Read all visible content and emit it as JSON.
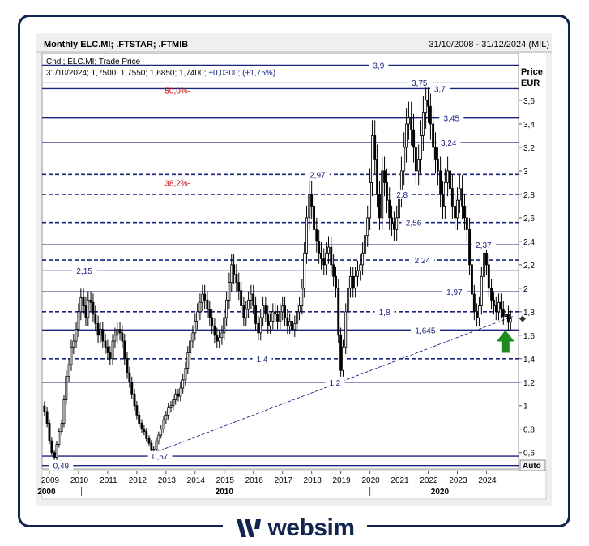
{
  "header": {
    "title": "Monthly ELC.MI; .FTSTAR; .FTMIB",
    "range": "31/10/2008 - 31/12/2024 (MIL)",
    "legend_line1": "Cndl; ELC.MI; Trade Price",
    "legend_line2_prefix": "31/10/2024; 1,7500; 1,7550; 1,6850; 1,7400; ",
    "legend_line2_change": "+0,0300; (+1,75%)",
    "price_label": "Price",
    "currency_label": "EUR",
    "auto_label": "Auto"
  },
  "logo": {
    "text": "websim",
    "icon": "websim-slash-icon"
  },
  "colors": {
    "navy": "#10254f",
    "level_line": "#1a237e",
    "fib_label": "#cc0000",
    "candle": "#000000",
    "arrow": "#1d8a1d"
  },
  "chart_data": {
    "type": "candlestick",
    "title": "Monthly ELC.MI; .FTSTAR; .FTMIB",
    "ylabel": "Price EUR",
    "ylim": [
      0.46,
      4.0
    ],
    "xlim": [
      2008.75,
      2025.1
    ],
    "yticks": [
      "0,6",
      "0,8",
      "1",
      "1,2",
      "1,4",
      "1,6",
      "1,8",
      "2",
      "2,2",
      "2,4",
      "2,6",
      "2,8",
      "3",
      "3,2",
      "3,4",
      "3,6"
    ],
    "ytick_values": [
      0.6,
      0.8,
      1.0,
      1.2,
      1.4,
      1.6,
      1.8,
      2.0,
      2.2,
      2.4,
      2.6,
      2.8,
      3.0,
      3.2,
      3.4,
      3.6
    ],
    "xticks": [
      "2009",
      "2010",
      "2011",
      "2012",
      "2013",
      "2014",
      "2015",
      "2016",
      "2017",
      "2018",
      "2019",
      "2020",
      "2021",
      "2022",
      "2023",
      "2024"
    ],
    "decades": [
      {
        "label": "2000",
        "year": 2008.9
      },
      {
        "label": "2010",
        "year": 2015.0
      },
      {
        "label": "2020",
        "year": 2022.4
      }
    ],
    "horizontal_levels": [
      {
        "value": 3.9,
        "label": "3,9",
        "style": "solid",
        "label_year": 2020.3
      },
      {
        "value": 3.75,
        "label": "3,75",
        "style": "thin",
        "label_year": 2021.7
      },
      {
        "value": 3.7,
        "label": "3,7",
        "style": "solid",
        "label_year": 2022.4
      },
      {
        "value": 3.45,
        "label": "3,45",
        "style": "solid",
        "label_year": 2022.8
      },
      {
        "value": 3.24,
        "label": "3,24",
        "style": "solid",
        "label_year": 2022.7
      },
      {
        "value": 2.97,
        "label": "2,97",
        "style": "dashed",
        "label_year": 2018.2
      },
      {
        "value": 2.8,
        "label": "2,8",
        "style": "dashed",
        "label_year": 2021.1
      },
      {
        "value": 2.56,
        "label": "2,56",
        "style": "dashed",
        "label_year": 2021.5
      },
      {
        "value": 2.37,
        "label": "2,37",
        "style": "solid",
        "label_year": 2023.9
      },
      {
        "value": 2.24,
        "label": "2,24",
        "style": "dashed",
        "label_year": 2021.8
      },
      {
        "value": 2.15,
        "label": "2,15",
        "style": "thin",
        "label_year": 2010.2
      },
      {
        "value": 1.97,
        "label": "1,97",
        "style": "solid",
        "label_year": 2022.9
      },
      {
        "value": 1.8,
        "label": "1,8",
        "style": "dashed",
        "label_year": 2020.5
      },
      {
        "value": 1.645,
        "label": "1,645",
        "style": "solid",
        "label_year": 2021.9
      },
      {
        "value": 1.4,
        "label": "1,4",
        "style": "dashed",
        "label_year": 2016.3
      },
      {
        "value": 1.2,
        "label": "1,2",
        "style": "solid",
        "label_year": 2018.8
      },
      {
        "value": 0.57,
        "label": "0,57",
        "style": "solid",
        "label_year": 2012.8
      },
      {
        "value": 0.49,
        "label": "0,49",
        "style": "solid",
        "label_year": 2009.4
      }
    ],
    "fib_labels": [
      {
        "value": 3.685,
        "label": "50,0%-",
        "label_year": 2013.4
      },
      {
        "value": 2.9,
        "label": "38,2%-",
        "label_year": 2013.4
      }
    ],
    "trendline": {
      "start": [
        2012.5,
        0.59
      ],
      "end": [
        2024.9,
        1.76
      ],
      "style": "dashed"
    },
    "last_price": {
      "year": 2024.85,
      "value": 1.74
    },
    "arrow": {
      "year": 2024.65,
      "value": 1.45,
      "direction": "up"
    },
    "close_series": [
      [
        2008.83,
        0.95
      ],
      [
        2008.92,
        0.85
      ],
      [
        2009.0,
        0.7
      ],
      [
        2009.08,
        0.6
      ],
      [
        2009.17,
        0.56
      ],
      [
        2009.25,
        0.67
      ],
      [
        2009.33,
        0.78
      ],
      [
        2009.42,
        0.85
      ],
      [
        2009.5,
        1.05
      ],
      [
        2009.58,
        1.25
      ],
      [
        2009.67,
        1.35
      ],
      [
        2009.75,
        1.5
      ],
      [
        2009.83,
        1.55
      ],
      [
        2009.92,
        1.65
      ],
      [
        2010.0,
        1.8
      ],
      [
        2010.08,
        1.92
      ],
      [
        2010.17,
        1.85
      ],
      [
        2010.25,
        1.75
      ],
      [
        2010.33,
        1.9
      ],
      [
        2010.42,
        1.88
      ],
      [
        2010.5,
        1.78
      ],
      [
        2010.58,
        1.7
      ],
      [
        2010.67,
        1.6
      ],
      [
        2010.75,
        1.65
      ],
      [
        2010.83,
        1.55
      ],
      [
        2010.92,
        1.5
      ],
      [
        2011.0,
        1.45
      ],
      [
        2011.08,
        1.4
      ],
      [
        2011.17,
        1.55
      ],
      [
        2011.25,
        1.6
      ],
      [
        2011.33,
        1.65
      ],
      [
        2011.42,
        1.62
      ],
      [
        2011.5,
        1.55
      ],
      [
        2011.58,
        1.4
      ],
      [
        2011.67,
        1.28
      ],
      [
        2011.75,
        1.2
      ],
      [
        2011.83,
        1.1
      ],
      [
        2011.92,
        1.0
      ],
      [
        2012.0,
        0.92
      ],
      [
        2012.08,
        0.85
      ],
      [
        2012.17,
        0.8
      ],
      [
        2012.25,
        0.78
      ],
      [
        2012.33,
        0.72
      ],
      [
        2012.42,
        0.68
      ],
      [
        2012.5,
        0.62
      ],
      [
        2012.58,
        0.63
      ],
      [
        2012.67,
        0.7
      ],
      [
        2012.75,
        0.75
      ],
      [
        2012.83,
        0.8
      ],
      [
        2012.92,
        0.88
      ],
      [
        2013.0,
        0.92
      ],
      [
        2013.08,
        0.98
      ],
      [
        2013.17,
        1.0
      ],
      [
        2013.25,
        1.05
      ],
      [
        2013.33,
        1.1
      ],
      [
        2013.42,
        1.08
      ],
      [
        2013.5,
        1.15
      ],
      [
        2013.58,
        1.22
      ],
      [
        2013.67,
        1.32
      ],
      [
        2013.75,
        1.45
      ],
      [
        2013.83,
        1.55
      ],
      [
        2013.92,
        1.62
      ],
      [
        2014.0,
        1.72
      ],
      [
        2014.08,
        1.8
      ],
      [
        2014.17,
        1.88
      ],
      [
        2014.25,
        1.95
      ],
      [
        2014.33,
        1.9
      ],
      [
        2014.42,
        1.82
      ],
      [
        2014.5,
        1.75
      ],
      [
        2014.58,
        1.68
      ],
      [
        2014.67,
        1.6
      ],
      [
        2014.75,
        1.55
      ],
      [
        2014.83,
        1.58
      ],
      [
        2014.92,
        1.62
      ],
      [
        2015.0,
        1.75
      ],
      [
        2015.08,
        1.9
      ],
      [
        2015.17,
        2.05
      ],
      [
        2015.25,
        2.2
      ],
      [
        2015.33,
        2.12
      ],
      [
        2015.42,
        2.05
      ],
      [
        2015.5,
        1.98
      ],
      [
        2015.58,
        1.85
      ],
      [
        2015.67,
        1.75
      ],
      [
        2015.75,
        1.82
      ],
      [
        2015.83,
        1.9
      ],
      [
        2015.92,
        1.95
      ],
      [
        2016.0,
        1.85
      ],
      [
        2016.08,
        1.7
      ],
      [
        2016.17,
        1.62
      ],
      [
        2016.25,
        1.75
      ],
      [
        2016.33,
        1.85
      ],
      [
        2016.42,
        1.78
      ],
      [
        2016.5,
        1.68
      ],
      [
        2016.58,
        1.72
      ],
      [
        2016.67,
        1.8
      ],
      [
        2016.75,
        1.78
      ],
      [
        2016.83,
        1.72
      ],
      [
        2016.92,
        1.8
      ],
      [
        2017.0,
        1.85
      ],
      [
        2017.08,
        1.75
      ],
      [
        2017.17,
        1.68
      ],
      [
        2017.25,
        1.72
      ],
      [
        2017.33,
        1.65
      ],
      [
        2017.42,
        1.7
      ],
      [
        2017.5,
        1.8
      ],
      [
        2017.58,
        1.85
      ],
      [
        2017.67,
        2.0
      ],
      [
        2017.75,
        2.3
      ],
      [
        2017.83,
        2.6
      ],
      [
        2017.92,
        2.8
      ],
      [
        2018.0,
        2.7
      ],
      [
        2018.08,
        2.5
      ],
      [
        2018.17,
        2.4
      ],
      [
        2018.25,
        2.3
      ],
      [
        2018.33,
        2.25
      ],
      [
        2018.42,
        2.2
      ],
      [
        2018.5,
        2.3
      ],
      [
        2018.58,
        2.35
      ],
      [
        2018.67,
        2.2
      ],
      [
        2018.75,
        2.1
      ],
      [
        2018.83,
        2.0
      ],
      [
        2018.92,
        1.6
      ],
      [
        2019.0,
        1.3
      ],
      [
        2019.08,
        1.5
      ],
      [
        2019.17,
        1.8
      ],
      [
        2019.25,
        2.0
      ],
      [
        2019.33,
        2.1
      ],
      [
        2019.42,
        2.0
      ],
      [
        2019.5,
        2.1
      ],
      [
        2019.58,
        2.15
      ],
      [
        2019.67,
        2.2
      ],
      [
        2019.75,
        2.3
      ],
      [
        2019.83,
        2.45
      ],
      [
        2019.92,
        2.6
      ],
      [
        2020.0,
        2.9
      ],
      [
        2020.08,
        3.3
      ],
      [
        2020.17,
        3.1
      ],
      [
        2020.25,
        2.8
      ],
      [
        2020.33,
        2.6
      ],
      [
        2020.42,
        3.0
      ],
      [
        2020.5,
        2.9
      ],
      [
        2020.58,
        2.75
      ],
      [
        2020.67,
        2.6
      ],
      [
        2020.75,
        2.55
      ],
      [
        2020.83,
        2.5
      ],
      [
        2020.92,
        2.6
      ],
      [
        2021.0,
        2.8
      ],
      [
        2021.08,
        3.0
      ],
      [
        2021.17,
        3.2
      ],
      [
        2021.25,
        3.4
      ],
      [
        2021.33,
        3.45
      ],
      [
        2021.42,
        3.35
      ],
      [
        2021.5,
        3.2
      ],
      [
        2021.58,
        3.0
      ],
      [
        2021.67,
        3.1
      ],
      [
        2021.75,
        3.3
      ],
      [
        2021.83,
        3.5
      ],
      [
        2021.92,
        3.6
      ],
      [
        2022.0,
        3.55
      ],
      [
        2022.08,
        3.4
      ],
      [
        2022.17,
        3.2
      ],
      [
        2022.25,
        3.1
      ],
      [
        2022.33,
        3.0
      ],
      [
        2022.42,
        2.8
      ],
      [
        2022.5,
        2.7
      ],
      [
        2022.58,
        2.9
      ],
      [
        2022.67,
        3.0
      ],
      [
        2022.75,
        2.85
      ],
      [
        2022.83,
        2.7
      ],
      [
        2022.92,
        2.6
      ],
      [
        2023.0,
        2.75
      ],
      [
        2023.08,
        2.85
      ],
      [
        2023.17,
        2.7
      ],
      [
        2023.25,
        2.6
      ],
      [
        2023.33,
        2.5
      ],
      [
        2023.42,
        2.2
      ],
      [
        2023.5,
        1.95
      ],
      [
        2023.58,
        1.8
      ],
      [
        2023.67,
        1.75
      ],
      [
        2023.75,
        1.85
      ],
      [
        2023.83,
        2.1
      ],
      [
        2023.92,
        2.3
      ],
      [
        2024.0,
        2.2
      ],
      [
        2024.08,
        2.0
      ],
      [
        2024.17,
        1.9
      ],
      [
        2024.25,
        1.85
      ],
      [
        2024.33,
        1.8
      ],
      [
        2024.42,
        1.88
      ],
      [
        2024.5,
        1.82
      ],
      [
        2024.58,
        1.76
      ],
      [
        2024.67,
        1.78
      ],
      [
        2024.75,
        1.71
      ],
      [
        2024.83,
        1.74
      ]
    ]
  }
}
